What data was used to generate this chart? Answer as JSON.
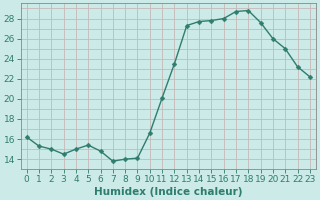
{
  "x": [
    0,
    1,
    2,
    3,
    4,
    5,
    6,
    7,
    8,
    9,
    10,
    11,
    12,
    13,
    14,
    15,
    16,
    17,
    18,
    19,
    20,
    21,
    22,
    23
  ],
  "y": [
    16.2,
    15.3,
    15.0,
    14.5,
    15.0,
    15.4,
    14.8,
    13.8,
    14.0,
    14.1,
    16.6,
    20.1,
    23.5,
    27.3,
    27.7,
    27.8,
    28.0,
    28.7,
    28.8,
    27.6,
    26.0,
    25.0,
    23.2,
    22.2
  ],
  "line_color": "#2e7d6e",
  "marker": "D",
  "marker_size": 2.5,
  "line_width": 1.0,
  "bg_color": "#cceae7",
  "grid_major_color": "#c8b8b8",
  "grid_minor_color": "#c8b8b8",
  "xlabel": "Humidex (Indice chaleur)",
  "ylabel_ticks": [
    14,
    16,
    18,
    20,
    22,
    24,
    26,
    28
  ],
  "ylim": [
    13.0,
    29.5
  ],
  "xlim": [
    -0.5,
    23.5
  ],
  "xtick_labels": [
    "0",
    "1",
    "2",
    "3",
    "4",
    "5",
    "6",
    "7",
    "8",
    "9",
    "10",
    "11",
    "12",
    "13",
    "14",
    "15",
    "16",
    "17",
    "18",
    "19",
    "20",
    "21",
    "22",
    "23"
  ],
  "xlabel_fontsize": 7.5,
  "tick_fontsize": 6.5
}
